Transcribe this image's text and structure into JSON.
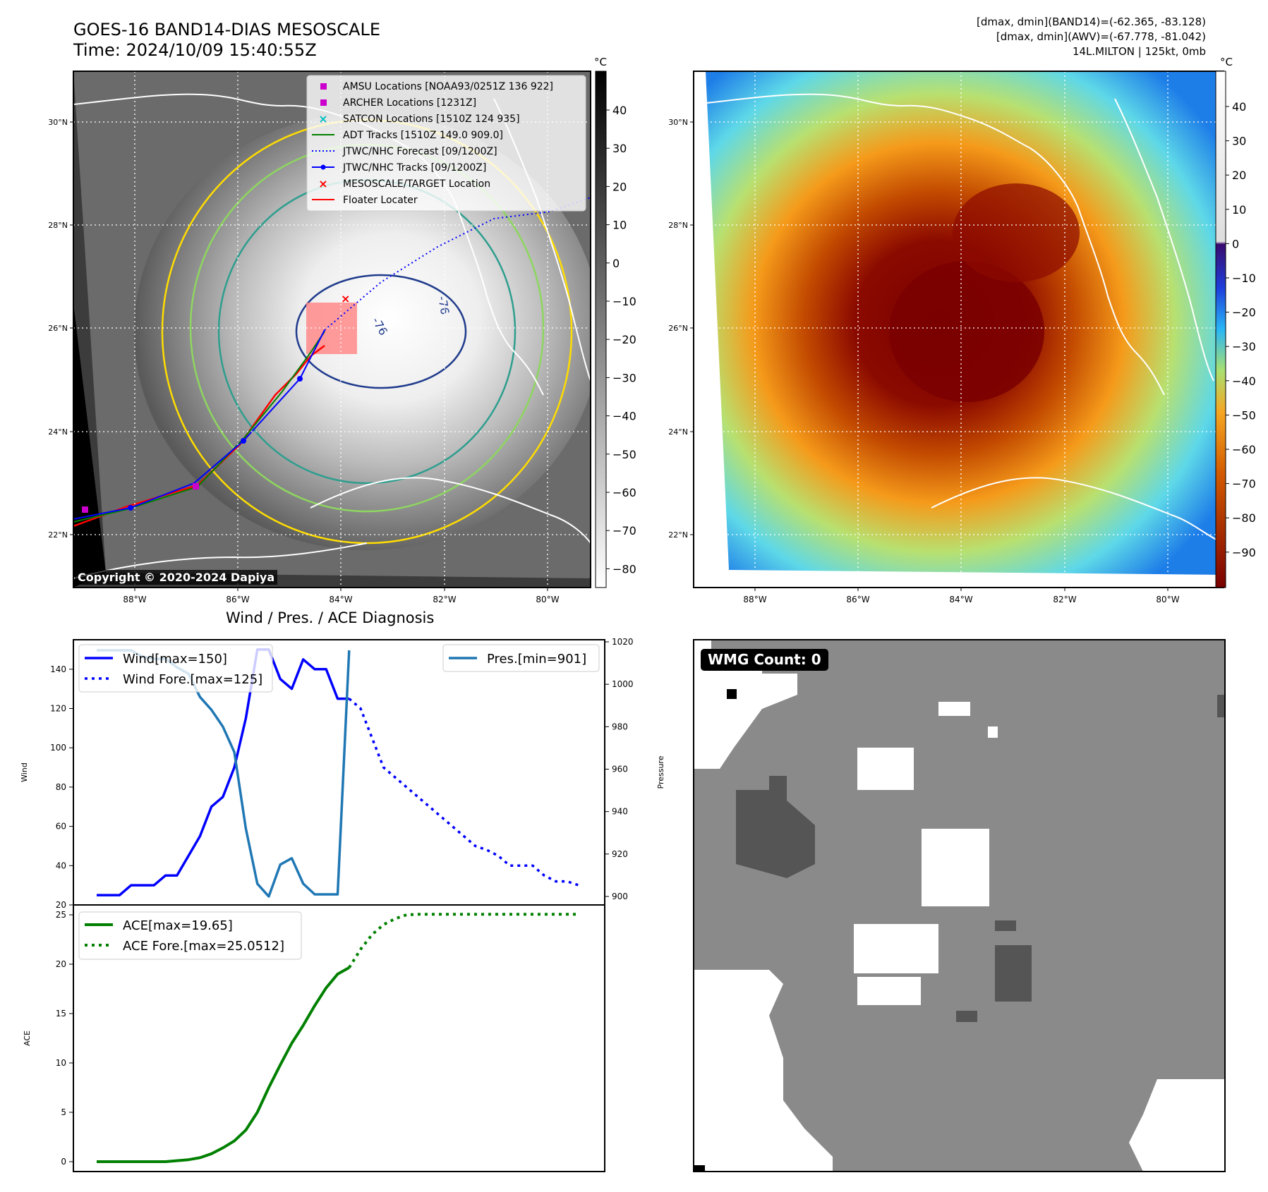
{
  "header": {
    "title_line1": "GOES-16 BAND14-DIAS MESOSCALE",
    "title_line2": "Time: 2024/10/09 15:40:55Z",
    "stat_line1": "[dmax, dmin](BAND14)=(-62.365, -83.128)",
    "stat_line2": "[dmax, dmin](AWV)=(-67.778, -81.042)",
    "stat_line3": "14L.MILTON | 125kt, 0mb"
  },
  "maps": {
    "lon_ticks": [
      "88°W",
      "86°W",
      "84°W",
      "82°W",
      "80°W"
    ],
    "lat_ticks": [
      "30°N",
      "28°N",
      "26°N",
      "24°N",
      "22°N"
    ],
    "copyright": "Copyright © 2020-2024 Dapiya",
    "contour_labels": [
      "-76",
      "-76"
    ],
    "legend": [
      {
        "label": "AMSU Locations [NOAA93/0251Z 136 922]",
        "marker": "square",
        "color": "#cc00cc"
      },
      {
        "label": "ARCHER Locations [1231Z]",
        "marker": "square",
        "color": "#cc00cc"
      },
      {
        "label": "SATCON Locations [1510Z 124 935]",
        "marker": "x",
        "color": "#00bfbf"
      },
      {
        "label": "ADT Tracks [1510Z 149.0 909.0]",
        "marker": "line",
        "color": "#008000"
      },
      {
        "label": "JTWC/NHC Forecast [09/1200Z]",
        "marker": "dotted",
        "color": "#0000ff"
      },
      {
        "label": "JTWC/NHC Tracks [09/1200Z]",
        "marker": "line-dot",
        "color": "#0000ff"
      },
      {
        "label": "MESOSCALE/TARGET Location",
        "marker": "x",
        "color": "#ff0000"
      },
      {
        "label": "Floater Locater",
        "marker": "line",
        "color": "#ff0000"
      }
    ],
    "gray_colorbar": {
      "unit": "°C",
      "ticks": [
        "40",
        "30",
        "20",
        "10",
        "0",
        "−10",
        "−20",
        "−30",
        "−40",
        "−50",
        "−60",
        "−70",
        "−80"
      ]
    },
    "color_colorbar": {
      "unit": "°C",
      "ticks": [
        "40",
        "30",
        "20",
        "10",
        "0",
        "−10",
        "−20",
        "−30",
        "−40",
        "−50",
        "−60",
        "−70",
        "−80",
        "−90"
      ]
    }
  },
  "diagnosis": {
    "title": "Wind / Pres. / ACE Diagnosis",
    "wind_label": "Wind",
    "pressure_label": "Pressure",
    "ace_label": "ACE",
    "wmg_count": "WMG Count: 0"
  },
  "chart_data": [
    {
      "type": "line",
      "title": "Wind / Pres. / ACE Diagnosis",
      "ylabel": "Wind",
      "ylim": [
        20,
        155
      ],
      "yticks": [
        20,
        40,
        60,
        80,
        100,
        120,
        140
      ],
      "y2label": "Pressure",
      "y2lim": [
        896,
        1021
      ],
      "y2ticks": [
        900,
        920,
        940,
        960,
        980,
        1000,
        1020
      ],
      "legend_wind": [
        "Wind[max=150]",
        "Wind Fore.[max=125]"
      ],
      "legend_pres": [
        "Pres.[min=901]"
      ],
      "series": [
        {
          "name": "Wind[max=150]",
          "axis": "left",
          "style": "solid",
          "color": "#0000ff",
          "x": [
            0,
            1,
            2,
            3,
            4,
            5,
            6,
            7,
            8,
            9,
            10,
            11,
            12,
            13,
            14,
            15,
            16,
            17,
            18,
            19,
            20,
            21,
            22
          ],
          "values": [
            25,
            25,
            25,
            30,
            30,
            30,
            35,
            35,
            45,
            55,
            70,
            75,
            90,
            115,
            150,
            150,
            135,
            130,
            145,
            140,
            140,
            125,
            125
          ]
        },
        {
          "name": "Wind Fore.[max=125]",
          "axis": "left",
          "style": "dotted",
          "color": "#0000ff",
          "x": [
            22,
            23,
            24,
            25,
            26,
            27,
            28,
            29,
            30,
            31,
            32,
            33,
            34,
            35,
            36,
            37,
            38,
            39,
            40,
            41,
            42
          ],
          "values": [
            125,
            120,
            105,
            90,
            85,
            80,
            75,
            70,
            65,
            60,
            55,
            50,
            48,
            45,
            40,
            40,
            40,
            35,
            32,
            32,
            30
          ]
        },
        {
          "name": "Pres.[min=901]",
          "axis": "right",
          "style": "solid",
          "color": "#1f77b4",
          "x": [
            0,
            1,
            2,
            3,
            4,
            5,
            6,
            7,
            8,
            9,
            10,
            11,
            12,
            13,
            14,
            15,
            16,
            17,
            18,
            19,
            20,
            21,
            22
          ],
          "values": [
            1016,
            1016,
            1016,
            1016,
            1013,
            1012,
            1012,
            1008,
            1005,
            994,
            988,
            980,
            968,
            932,
            906,
            900,
            915,
            918,
            906,
            901,
            901,
            901,
            1016
          ]
        }
      ]
    },
    {
      "type": "line",
      "ylabel": "ACE",
      "ylim": [
        -1,
        26
      ],
      "yticks": [
        0,
        5,
        10,
        15,
        20,
        25
      ],
      "series": [
        {
          "name": "ACE[max=19.65]",
          "style": "solid",
          "color": "#008000",
          "x": [
            0,
            1,
            2,
            3,
            4,
            5,
            6,
            7,
            8,
            9,
            10,
            11,
            12,
            13,
            14,
            15,
            16,
            17,
            18,
            19,
            20,
            21,
            22
          ],
          "values": [
            0,
            0,
            0,
            0,
            0,
            0,
            0,
            0.1,
            0.2,
            0.4,
            0.8,
            1.4,
            2.1,
            3.2,
            5,
            7.5,
            9.8,
            12,
            13.8,
            15.8,
            17.6,
            19,
            19.65
          ]
        },
        {
          "name": "ACE Fore.[max=25.0512]",
          "style": "dotted",
          "color": "#008000",
          "x": [
            22,
            23,
            24,
            25,
            26,
            27,
            28,
            29,
            30,
            31,
            32,
            33,
            34,
            35,
            36,
            37,
            38,
            39,
            40,
            41,
            42
          ],
          "values": [
            19.65,
            21.5,
            23,
            24,
            24.6,
            25,
            25.05,
            25.05,
            25.05,
            25.05,
            25.05,
            25.05,
            25.05,
            25.05,
            25.05,
            25.05,
            25.05,
            25.05,
            25.05,
            25.05,
            25.05
          ]
        }
      ]
    }
  ],
  "colors": {
    "frame": "#000000",
    "gray_bg": "#4a4a4a",
    "grid": "#ffffff",
    "wmg_gray": "#8a8a8a",
    "wmg_dark": "#555555"
  }
}
